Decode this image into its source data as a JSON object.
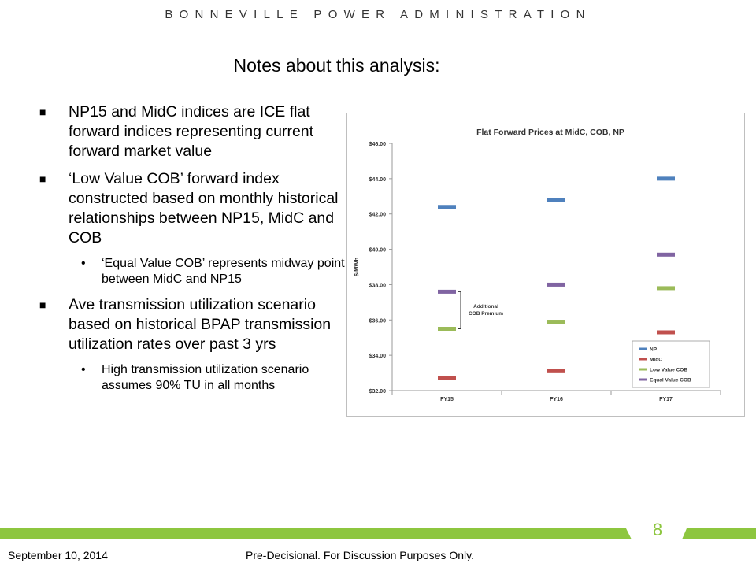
{
  "header": {
    "org": "BONNEVILLE POWER ADMINISTRATION"
  },
  "title": "Notes about this analysis:",
  "bullets": [
    {
      "level": 1,
      "marker": "■",
      "text": "NP15 and MidC indices are ICE flat forward indices representing current forward market value"
    },
    {
      "level": 1,
      "marker": "■",
      "text": "‘Low Value COB’ forward index constructed based on monthly historical relationships between NP15, MidC and COB"
    },
    {
      "level": 2,
      "marker": "•",
      "text": "‘Equal Value COB’ represents midway point between MidC and NP15"
    },
    {
      "level": 1,
      "marker": "■",
      "text": "Ave transmission utilization scenario based on historical BPAP transmission utilization rates over past 3 yrs"
    },
    {
      "level": 2,
      "marker": "•",
      "text": "High transmission utilization scenario assumes 90% TU in all months"
    }
  ],
  "chart_data": {
    "type": "scatter",
    "title": "Flat Forward Prices at MidC, COB, NP",
    "xlabel": "",
    "ylabel": "$/MWh",
    "categories": [
      "FY15",
      "FY16",
      "FY17"
    ],
    "ylim": [
      32,
      46
    ],
    "yticks": [
      32,
      34,
      36,
      38,
      40,
      42,
      44,
      46
    ],
    "ytick_labels": [
      "$32.00",
      "$34.00",
      "$36.00",
      "$38.00",
      "$40.00",
      "$42.00",
      "$44.00",
      "$46.00"
    ],
    "series": [
      {
        "name": "NP",
        "color": "#4f81bd",
        "values": [
          42.4,
          42.8,
          44.0
        ]
      },
      {
        "name": "MidC",
        "color": "#c0504d",
        "values": [
          32.7,
          33.1,
          35.3
        ]
      },
      {
        "name": "Low Value COB",
        "color": "#9bbb59",
        "values": [
          35.5,
          35.9,
          37.8
        ]
      },
      {
        "name": "Equal Value COB",
        "color": "#8064a2",
        "values": [
          37.6,
          38.0,
          39.7
        ]
      }
    ],
    "annotation": {
      "label_line1": "Additional",
      "label_line2": "COB Premium"
    },
    "legend_position": "bottom-right",
    "grid": false
  },
  "footer": {
    "page_number": "8",
    "date": "September 10, 2014",
    "note": "Pre-Decisional. For Discussion Purposes Only.",
    "accent_color": "#8dc63f"
  }
}
